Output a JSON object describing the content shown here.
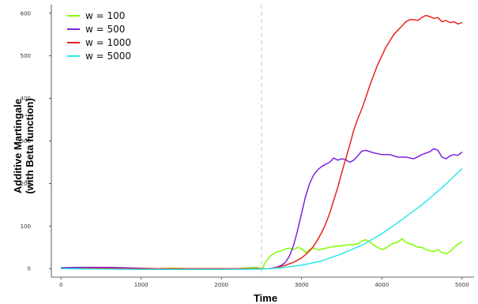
{
  "chart_data": {
    "type": "line",
    "title": "",
    "xlabel": "Time",
    "ylabel_lines": [
      "Additive Martingale",
      "(with Beta function)"
    ],
    "xlim": [
      -120,
      5150
    ],
    "ylim": [
      -20,
      620
    ],
    "xticks": [
      0,
      1000,
      2000,
      3000,
      4000,
      5000
    ],
    "yticks": [
      0,
      100,
      200,
      300,
      400,
      500,
      600
    ],
    "xtick_labels": [
      "0",
      "1000",
      "2000",
      "3000",
      "4000",
      "5000"
    ],
    "ytick_labels": [
      "0",
      "100",
      "200",
      "300",
      "400",
      "500",
      "600"
    ],
    "change_point_x": 2500,
    "grid": false,
    "legend_position": "top-left",
    "series": [
      {
        "name": "w = 100",
        "color": "#7fff00",
        "x": [
          0,
          100,
          200,
          300,
          400,
          500,
          600,
          800,
          1000,
          1200,
          1400,
          1600,
          1800,
          2000,
          2200,
          2350,
          2450,
          2500,
          2550,
          2600,
          2650,
          2700,
          2750,
          2800,
          2850,
          2900,
          2950,
          3000,
          3050,
          3100,
          3150,
          3200,
          3300,
          3400,
          3500,
          3600,
          3700,
          3750,
          3800,
          3850,
          3900,
          3950,
          4000,
          4050,
          4100,
          4150,
          4200,
          4250,
          4300,
          4350,
          4400,
          4450,
          4500,
          4550,
          4600,
          4650,
          4700,
          4750,
          4800,
          4850,
          4900,
          4950,
          5000
        ],
        "y": [
          1,
          2,
          3,
          2,
          2,
          3,
          1,
          2,
          0,
          0,
          1,
          0,
          -1,
          0,
          0,
          2,
          3,
          -2,
          15,
          28,
          35,
          40,
          42,
          46,
          48,
          45,
          50,
          47,
          38,
          45,
          48,
          44,
          48,
          52,
          54,
          56,
          58,
          65,
          68,
          63,
          55,
          50,
          45,
          48,
          55,
          60,
          62,
          70,
          62,
          58,
          55,
          50,
          50,
          45,
          42,
          40,
          45,
          38,
          35,
          40,
          50,
          58,
          63
        ]
      },
      {
        "name": "w = 500",
        "color": "#7b24e0",
        "x": [
          0,
          200,
          400,
          600,
          800,
          1000,
          1200,
          1400,
          1600,
          1800,
          2000,
          2200,
          2400,
          2500,
          2600,
          2650,
          2700,
          2750,
          2800,
          2850,
          2900,
          2950,
          3000,
          3050,
          3100,
          3150,
          3200,
          3250,
          3300,
          3350,
          3400,
          3450,
          3500,
          3550,
          3600,
          3650,
          3700,
          3750,
          3800,
          3850,
          3900,
          3950,
          4000,
          4100,
          4200,
          4300,
          4400,
          4500,
          4600,
          4650,
          4700,
          4750,
          4800,
          4850,
          4900,
          4950,
          5000
        ],
        "y": [
          2,
          3,
          3,
          3,
          2,
          1,
          0,
          -1,
          -1,
          0,
          0,
          0,
          0,
          0,
          0,
          2,
          4,
          8,
          15,
          30,
          55,
          90,
          130,
          170,
          200,
          220,
          232,
          240,
          245,
          250,
          260,
          255,
          258,
          256,
          250,
          255,
          265,
          276,
          278,
          275,
          272,
          270,
          268,
          268,
          262,
          262,
          258,
          268,
          275,
          282,
          278,
          262,
          258,
          265,
          268,
          266,
          274
        ]
      },
      {
        "name": "w = 1000",
        "color": "#e8231c",
        "x": [
          0,
          200,
          400,
          600,
          800,
          1000,
          1200,
          1400,
          1600,
          1800,
          2000,
          2200,
          2400,
          2500,
          2600,
          2700,
          2800,
          2900,
          3000,
          3050,
          3100,
          3150,
          3200,
          3250,
          3300,
          3350,
          3400,
          3450,
          3500,
          3550,
          3600,
          3650,
          3700,
          3750,
          3800,
          3850,
          3900,
          3950,
          4000,
          4050,
          4100,
          4150,
          4200,
          4250,
          4300,
          4350,
          4400,
          4450,
          4500,
          4550,
          4600,
          4650,
          4700,
          4750,
          4800,
          4850,
          4900,
          4950,
          5000
        ],
        "y": [
          0,
          0,
          1,
          1,
          0,
          0,
          0,
          0,
          0,
          0,
          0,
          0,
          0,
          0,
          0,
          3,
          8,
          15,
          25,
          33,
          42,
          53,
          68,
          85,
          105,
          130,
          160,
          190,
          225,
          258,
          290,
          325,
          352,
          375,
          402,
          430,
          455,
          480,
          500,
          520,
          535,
          550,
          560,
          570,
          580,
          585,
          585,
          583,
          590,
          595,
          592,
          588,
          590,
          580,
          583,
          578,
          580,
          575,
          578
        ]
      },
      {
        "name": "w = 5000",
        "color": "#2ee8e8",
        "x": [
          0,
          500,
          1000,
          1500,
          2000,
          2500,
          2750,
          3000,
          3250,
          3500,
          3750,
          4000,
          4250,
          4500,
          4750,
          5000
        ],
        "y": [
          0,
          -1,
          -2,
          -2,
          -2,
          -1,
          2,
          8,
          18,
          35,
          55,
          82,
          115,
          150,
          190,
          235
        ]
      }
    ]
  }
}
